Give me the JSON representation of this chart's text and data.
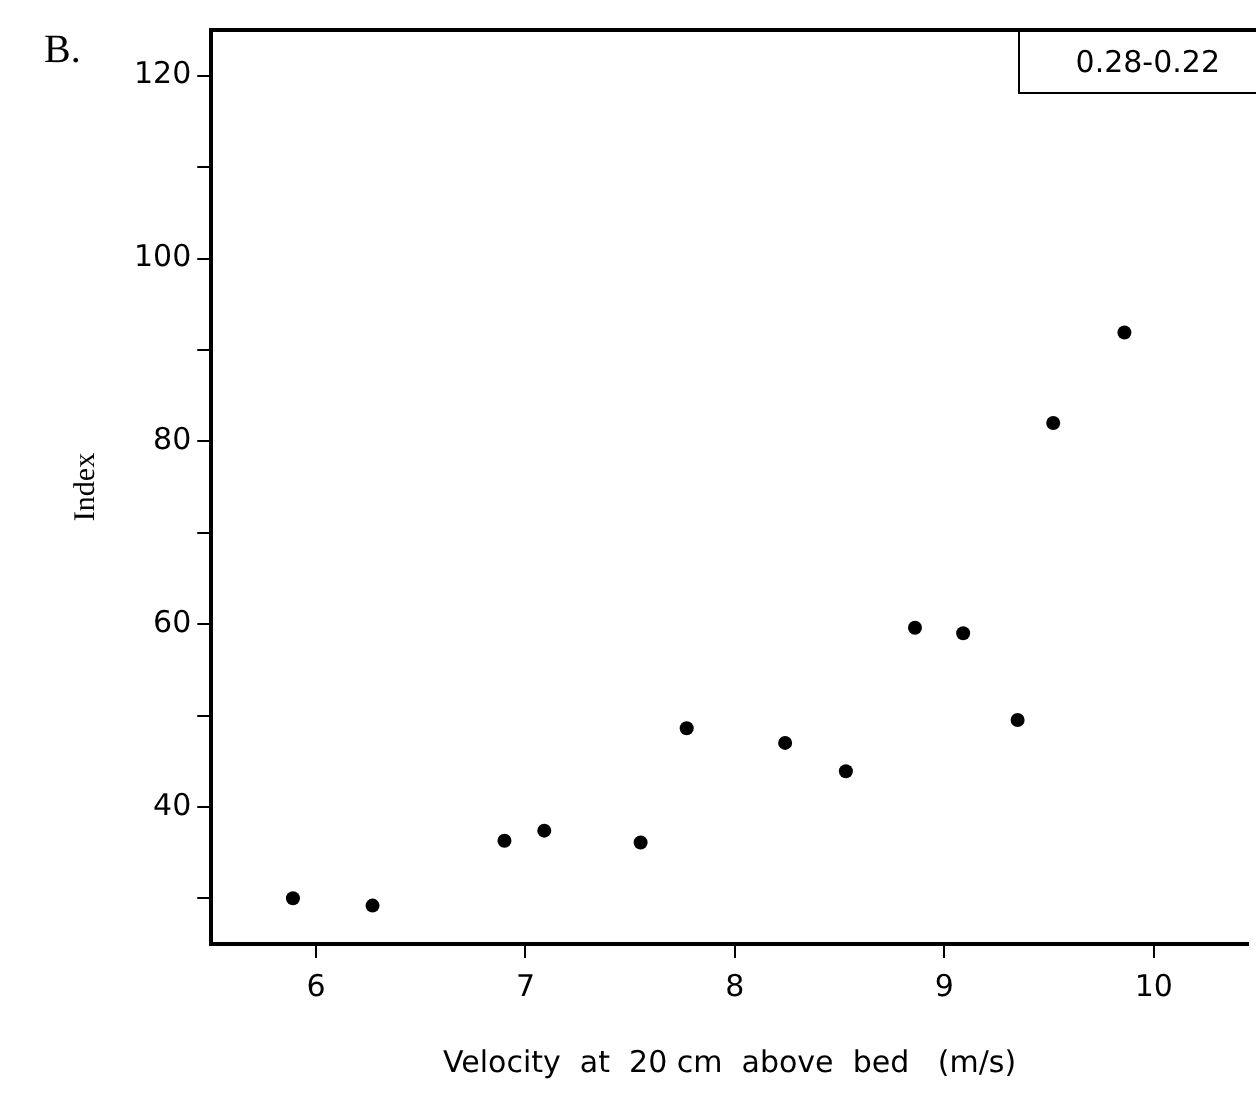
{
  "chart_data": {
    "type": "scatter",
    "xlabel": "Velocity  at  20 cm  above  bed   (m/s)",
    "ylabel": "Index",
    "annotations": [
      "B.",
      "0.28-0.22"
    ],
    "x": [
      5.89,
      6.27,
      6.9,
      7.09,
      7.55,
      7.77,
      8.24,
      8.53,
      8.86,
      9.09,
      9.35,
      9.52,
      9.86
    ],
    "series": [
      {
        "color": "#000000",
        "values": [
          30,
          29.2,
          36.3,
          37.4,
          36.1,
          48.6,
          47,
          43.9,
          59.6,
          59,
          49.5,
          82,
          91.9
        ]
      }
    ],
    "xlim": [
      5.5,
      10.45
    ],
    "xticks": [
      6,
      7,
      8,
      9,
      10
    ],
    "ylim": [
      25,
      125
    ],
    "yticks": [
      {
        "value": 30,
        "label": null
      },
      40,
      {
        "value": 50,
        "label": null
      },
      60,
      {
        "value": 70,
        "label": null
      },
      80,
      {
        "value": 90,
        "label": null
      },
      100,
      {
        "value": 110,
        "label": null
      },
      120
    ],
    "grid": false,
    "legend": false,
    "marker": "circle"
  }
}
